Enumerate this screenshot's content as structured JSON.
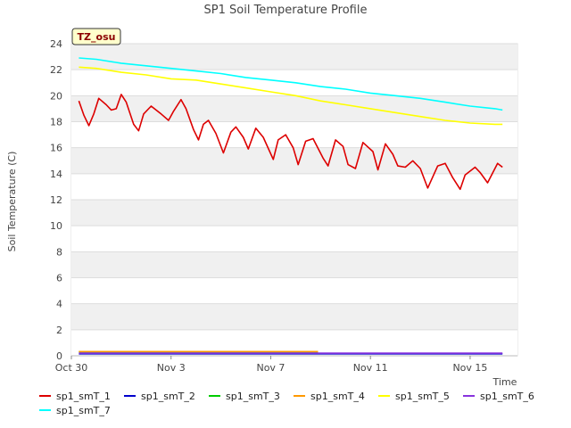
{
  "chart_data": {
    "type": "line",
    "title": "SP1 Soil Temperature Profile",
    "xlabel": "Time",
    "ylabel": "Soil Temperature (C)",
    "badge": "TZ_osu",
    "xlim": [
      0,
      17.9
    ],
    "ylim": [
      0,
      24
    ],
    "xticks": [
      {
        "x": 0,
        "label": "Oct 30"
      },
      {
        "x": 4,
        "label": "Nov 3"
      },
      {
        "x": 8,
        "label": "Nov 7"
      },
      {
        "x": 12,
        "label": "Nov 11"
      },
      {
        "x": 16,
        "label": "Nov 15"
      }
    ],
    "yticks": [
      0,
      2,
      4,
      6,
      8,
      10,
      12,
      14,
      16,
      18,
      20,
      22,
      24
    ],
    "grid": true,
    "legend_position": "bottom",
    "series": [
      {
        "name": "sp1_smT_1",
        "color": "#dd0000",
        "x": [
          0.3,
          0.5,
          0.7,
          0.9,
          1.1,
          1.4,
          1.6,
          1.8,
          2.0,
          2.2,
          2.5,
          2.7,
          2.9,
          3.2,
          3.6,
          3.9,
          4.1,
          4.4,
          4.6,
          4.9,
          5.1,
          5.3,
          5.5,
          5.8,
          6.1,
          6.4,
          6.6,
          6.9,
          7.1,
          7.4,
          7.7,
          8.1,
          8.3,
          8.6,
          8.9,
          9.1,
          9.4,
          9.7,
          10.1,
          10.3,
          10.6,
          10.9,
          11.1,
          11.4,
          11.7,
          12.1,
          12.3,
          12.6,
          12.9,
          13.1,
          13.4,
          13.7,
          14.0,
          14.3,
          14.7,
          15.0,
          15.3,
          15.6,
          15.8,
          16.2,
          16.4,
          16.7,
          17.1,
          17.3
        ],
        "y": [
          19.6,
          18.5,
          17.7,
          18.6,
          19.8,
          19.3,
          18.9,
          19.0,
          20.1,
          19.5,
          17.8,
          17.3,
          18.6,
          19.2,
          18.6,
          18.1,
          18.8,
          19.7,
          19.0,
          17.4,
          16.6,
          17.8,
          18.1,
          17.1,
          15.6,
          17.2,
          17.6,
          16.8,
          15.9,
          17.5,
          16.8,
          15.1,
          16.6,
          17.0,
          16.0,
          14.7,
          16.5,
          16.7,
          15.2,
          14.6,
          16.6,
          16.1,
          14.7,
          14.4,
          16.4,
          15.7,
          14.3,
          16.3,
          15.5,
          14.6,
          14.5,
          15.0,
          14.4,
          12.9,
          14.6,
          14.8,
          13.7,
          12.8,
          13.9,
          14.5,
          14.1,
          13.3,
          14.8,
          14.5
        ]
      },
      {
        "name": "sp1_smT_2",
        "color": "#0000cc",
        "x": [
          0.3,
          17.3
        ],
        "y": [
          0.15,
          0.15
        ]
      },
      {
        "name": "sp1_smT_3",
        "color": "#00cc00",
        "x": [
          0.3,
          9.9
        ],
        "y": [
          0.3,
          0.3
        ]
      },
      {
        "name": "sp1_smT_4",
        "color": "#ff9900",
        "x": [
          0.3,
          9.9
        ],
        "y": [
          0.32,
          0.32
        ]
      },
      {
        "name": "sp1_smT_5",
        "color": "#ffff00",
        "x": [
          0.3,
          1.0,
          2.0,
          3.0,
          4.0,
          5.0,
          6.0,
          7.0,
          8.0,
          9.0,
          10.0,
          11.0,
          12.0,
          13.0,
          14.0,
          15.0,
          16.0,
          17.0,
          17.3
        ],
        "y": [
          22.2,
          22.1,
          21.8,
          21.6,
          21.3,
          21.2,
          20.9,
          20.6,
          20.3,
          20.0,
          19.6,
          19.3,
          19.0,
          18.7,
          18.4,
          18.1,
          17.9,
          17.8,
          17.8
        ]
      },
      {
        "name": "sp1_smT_6",
        "color": "#8833dd",
        "x": [
          0.3,
          17.3
        ],
        "y": [
          0.2,
          0.2
        ]
      },
      {
        "name": "sp1_smT_7",
        "color": "#00ffff",
        "x": [
          0.3,
          1.0,
          2.0,
          3.0,
          4.0,
          5.0,
          6.0,
          7.0,
          8.0,
          9.0,
          10.0,
          11.0,
          12.0,
          13.0,
          14.0,
          15.0,
          16.0,
          17.0,
          17.3
        ],
        "y": [
          22.9,
          22.8,
          22.5,
          22.3,
          22.1,
          21.9,
          21.7,
          21.4,
          21.2,
          21.0,
          20.7,
          20.5,
          20.2,
          20.0,
          19.8,
          19.5,
          19.2,
          19.0,
          18.9
        ]
      }
    ]
  }
}
